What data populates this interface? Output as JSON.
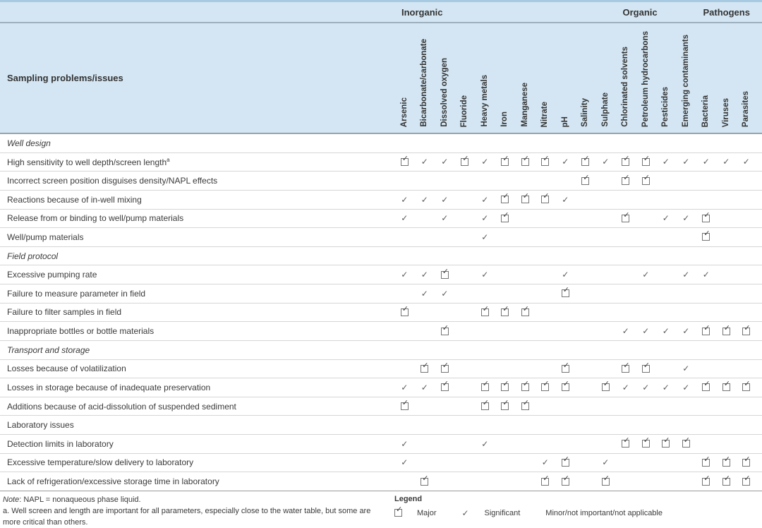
{
  "colors": {
    "header_bg": "#d4e6f3",
    "top_border": "#a7c9e2",
    "group_divider": "#9eafbd",
    "header_divider": "#97a3ad",
    "row_divider": "#d6d6d6",
    "text": "#3a3a3a",
    "mark": "#555555"
  },
  "table": {
    "corner_label": "Sampling problems/issues",
    "groups": [
      {
        "label": "Inorganic",
        "span": 11
      },
      {
        "label": "Organic",
        "span": 4
      },
      {
        "label": "Pathogens",
        "span": 3
      }
    ],
    "columns": [
      "Arsenic",
      "Bicarbonate/carbonate",
      "Dissolved oxygen",
      "Fluoride",
      "Heavy metals",
      "Iron",
      "Manganese",
      "Nitrate",
      "pH",
      "Salinity",
      "Sulphate",
      "Chlorinated solvents",
      "Petroleum hydrocarbons",
      "Pesticides",
      "Emerging contaminants",
      "Bacteria",
      "Viruses",
      "Parasites"
    ],
    "cell_code_meaning": {
      "M": "Major",
      "S": "Significant",
      "": "Minor/not important/not applicable"
    },
    "rows": [
      {
        "label": "Well design",
        "type": "section"
      },
      {
        "label": "High sensitivity to well depth/screen length",
        "sup": "a",
        "type": "data",
        "cells": [
          "M",
          "S",
          "S",
          "M",
          "S",
          "M",
          "M",
          "M",
          "S",
          "M",
          "S",
          "M",
          "M",
          "S",
          "S",
          "S",
          "S",
          "S"
        ]
      },
      {
        "label": "Incorrect screen position disguises density/NAPL effects",
        "type": "data",
        "cells": [
          "",
          "",
          "",
          "",
          "",
          "",
          "",
          "",
          "",
          "M",
          "",
          "M",
          "M",
          "",
          "",
          "",
          "",
          ""
        ]
      },
      {
        "label": "Reactions because of in-well mixing",
        "type": "data",
        "cells": [
          "S",
          "S",
          "S",
          "",
          "S",
          "M",
          "M",
          "M",
          "S",
          "",
          "",
          "",
          "",
          "",
          "",
          "",
          "",
          ""
        ]
      },
      {
        "label": "Release from or binding to well/pump materials",
        "type": "data",
        "cells": [
          "S",
          "",
          "S",
          "",
          "S",
          "M",
          "",
          "",
          "",
          "",
          "",
          "M",
          "",
          "S",
          "S",
          "M",
          "",
          ""
        ]
      },
      {
        "label": "Well/pump materials",
        "type": "data",
        "cells": [
          "",
          "",
          "",
          "",
          "S",
          "",
          "",
          "",
          "",
          "",
          "",
          "",
          "",
          "",
          "",
          "M",
          "",
          ""
        ]
      },
      {
        "label": "Field protocol",
        "type": "section"
      },
      {
        "label": "Excessive pumping rate",
        "type": "data",
        "cells": [
          "S",
          "S",
          "M",
          "",
          "S",
          "",
          "",
          "",
          "S",
          "",
          "",
          "",
          "S",
          "",
          "S",
          "S",
          "",
          ""
        ]
      },
      {
        "label": "Failure to measure parameter in field",
        "type": "data",
        "cells": [
          "",
          "S",
          "S",
          "",
          "",
          "",
          "",
          "",
          "M",
          "",
          "",
          "",
          "",
          "",
          "",
          "",
          "",
          ""
        ]
      },
      {
        "label": "Failure to filter samples in field",
        "type": "data",
        "cells": [
          "M",
          "",
          "",
          "",
          "M",
          "M",
          "M",
          "",
          "",
          "",
          "",
          "",
          "",
          "",
          "",
          "",
          "",
          ""
        ]
      },
      {
        "label": "Inappropriate bottles or bottle materials",
        "type": "data",
        "cells": [
          "",
          "",
          "M",
          "",
          "",
          "",
          "",
          "",
          "",
          "",
          "",
          "S",
          "S",
          "S",
          "S",
          "M",
          "M",
          "M"
        ]
      },
      {
        "label": "Transport and storage",
        "type": "section"
      },
      {
        "label": "Losses because of volatilization",
        "type": "data",
        "cells": [
          "",
          "M",
          "M",
          "",
          "",
          "",
          "",
          "",
          "M",
          "",
          "",
          "M",
          "M",
          "",
          "S",
          "",
          "",
          ""
        ]
      },
      {
        "label": "Losses in storage because of inadequate preservation",
        "type": "data",
        "cells": [
          "S",
          "S",
          "M",
          "",
          "M",
          "M",
          "M",
          "M",
          "M",
          "",
          "M",
          "S",
          "S",
          "S",
          "S",
          "M",
          "M",
          "M"
        ]
      },
      {
        "label": "Additions because of acid-dissolution of suspended sediment",
        "type": "data",
        "cells": [
          "M",
          "",
          "",
          "",
          "M",
          "M",
          "M",
          "",
          "",
          "",
          "",
          "",
          "",
          "",
          "",
          "",
          "",
          ""
        ]
      },
      {
        "label": "Laboratory issues",
        "type": "section",
        "upright": true
      },
      {
        "label": "Detection limits in laboratory",
        "type": "data",
        "cells": [
          "S",
          "",
          "",
          "",
          "S",
          "",
          "",
          "",
          "",
          "",
          "",
          "M",
          "M",
          "M",
          "M",
          "",
          "",
          ""
        ]
      },
      {
        "label": "Excessive temperature/slow delivery to laboratory",
        "type": "data",
        "cells": [
          "S",
          "",
          "",
          "",
          "",
          "",
          "",
          "S",
          "M",
          "",
          "S",
          "",
          "",
          "",
          "",
          "M",
          "M",
          "M"
        ]
      },
      {
        "label": "Lack of refrigeration/excessive storage time in laboratory",
        "type": "data",
        "cells": [
          "",
          "M",
          "",
          "",
          "",
          "",
          "",
          "M",
          "M",
          "",
          "M",
          "",
          "",
          "",
          "",
          "M",
          "M",
          "M"
        ]
      }
    ]
  },
  "notes": {
    "note_label": "Note",
    "note_rest": ": NAPL = nonaqueous phase liquid.",
    "footnote": "a. Well screen and length are important for all parameters, especially close to the water table, but some are more critical than others."
  },
  "legend": {
    "title": "Legend",
    "items": [
      {
        "symbol": "major",
        "label": "Major"
      },
      {
        "symbol": "significant",
        "label": "Significant"
      },
      {
        "symbol": "none",
        "label": "Minor/not important/not applicable"
      }
    ]
  }
}
